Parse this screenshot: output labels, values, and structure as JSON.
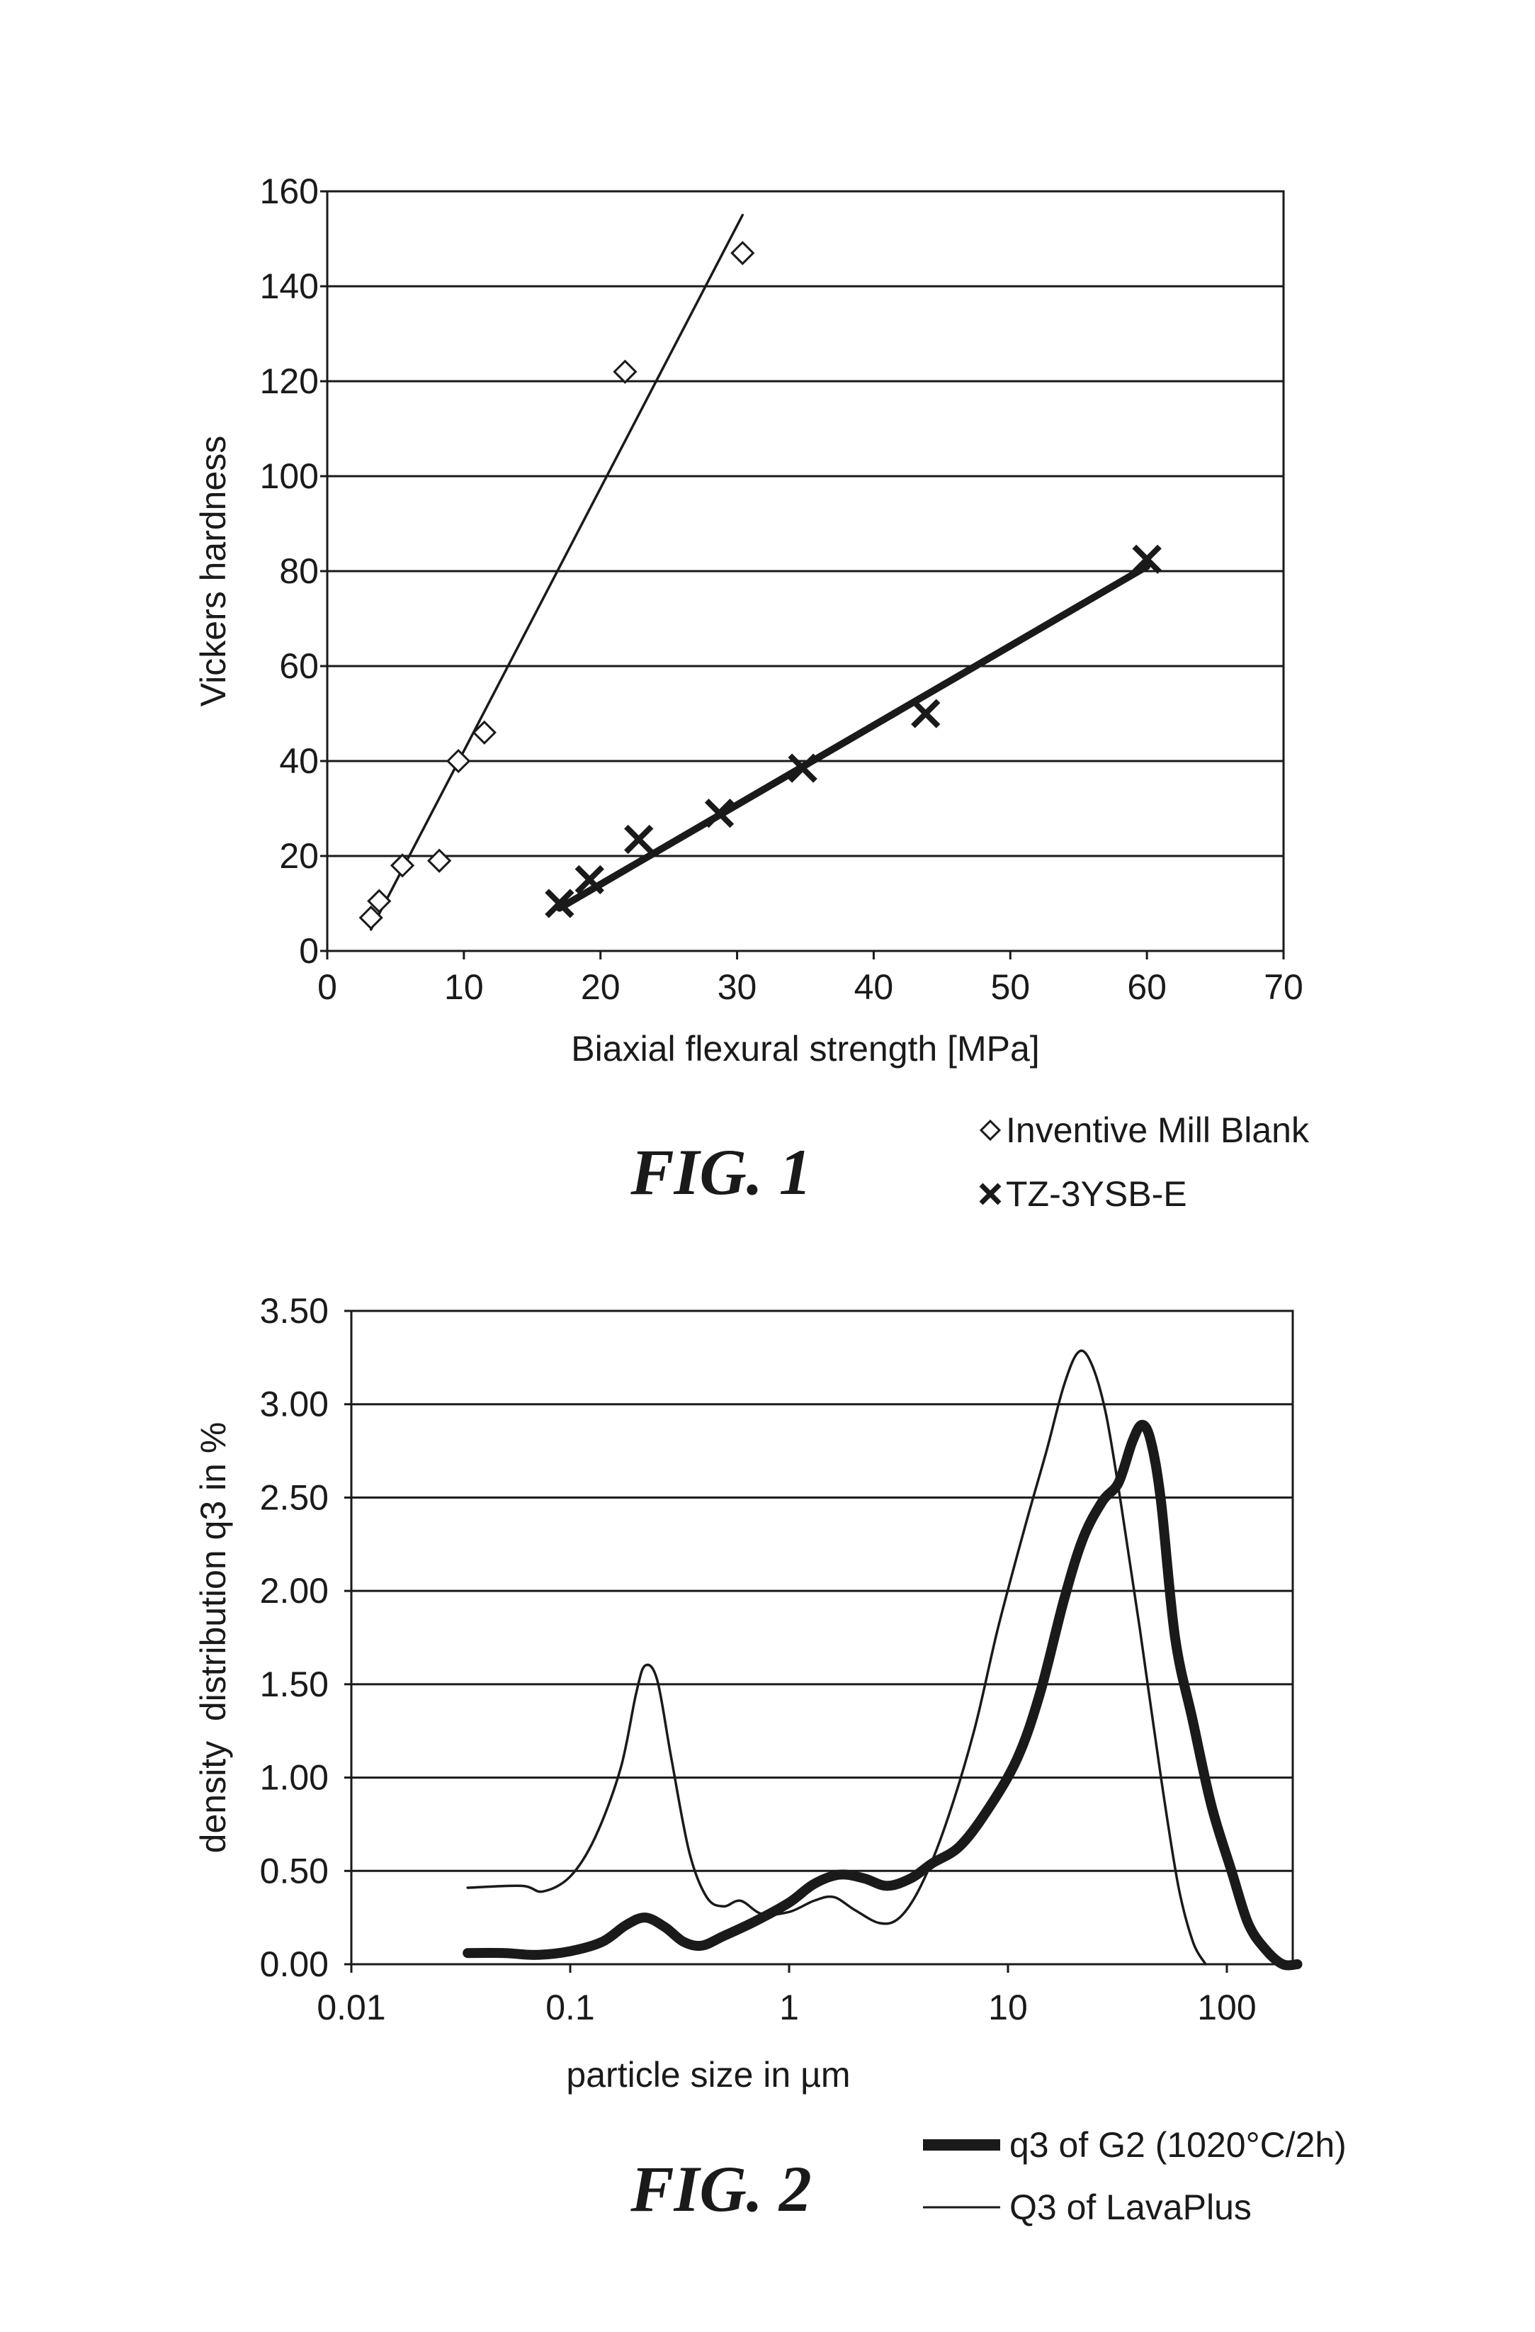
{
  "colors": {
    "ink": "#1a1a1a",
    "background": "#ffffff"
  },
  "chart_data": [
    {
      "type": "scatter",
      "figure_label": "FIG. 1",
      "title": "",
      "xlabel": "Biaxial flexural strength [MPa]",
      "ylabel": "Vickers hardness",
      "xlim": [
        0,
        70
      ],
      "ylim": [
        0,
        160
      ],
      "xticks": [
        "0",
        "10",
        "20",
        "30",
        "40",
        "50",
        "60",
        "70"
      ],
      "yticks": [
        "0",
        "20",
        "40",
        "60",
        "80",
        "100",
        "120",
        "140",
        "160"
      ],
      "grid": "horizontal",
      "legend_position": "bottom-right, outside plot",
      "series": [
        {
          "name": "Inventive Mill Blank",
          "marker": "open-diamond",
          "points": [
            [
              3.2,
              7
            ],
            [
              3.8,
              10.5
            ],
            [
              5.5,
              18
            ],
            [
              8.2,
              19
            ],
            [
              9.6,
              40
            ],
            [
              11.5,
              46
            ],
            [
              21.8,
              122
            ],
            [
              30.4,
              147
            ]
          ],
          "trendline": [
            [
              3.2,
              4.5
            ],
            [
              30.4,
              155
            ]
          ]
        },
        {
          "name": "TZ-3YSB-E",
          "marker": "bold-x",
          "points": [
            [
              17,
              10
            ],
            [
              19.2,
              15
            ],
            [
              22.8,
              23.5
            ],
            [
              28.7,
              29
            ],
            [
              34.8,
              38.5
            ],
            [
              43.8,
              50
            ],
            [
              60,
              82.5
            ]
          ],
          "trendline": [
            [
              17,
              9
            ],
            [
              60,
              81
            ]
          ]
        }
      ]
    },
    {
      "type": "line",
      "figure_label": "FIG. 2",
      "title": "",
      "xlabel": "particle size in µm",
      "ylabel": "density  distribution q3 in %",
      "xscale": "log",
      "xlim": [
        0.01,
        200
      ],
      "ylim": [
        0,
        3.5
      ],
      "xticks": [
        "0.01",
        "0.1",
        "1",
        "10",
        "100"
      ],
      "yticks": [
        "0.00",
        "0.50",
        "1.00",
        "1.50",
        "2.00",
        "2.50",
        "3.00",
        "3.50"
      ],
      "grid": "horizontal",
      "legend_position": "bottom-right, outside plot",
      "series": [
        {
          "name": "q3 of G2 (1020°C/2h)",
          "style": "thick",
          "points": [
            [
              0.034,
              0.06
            ],
            [
              0.05,
              0.06
            ],
            [
              0.07,
              0.05
            ],
            [
              0.1,
              0.07
            ],
            [
              0.14,
              0.12
            ],
            [
              0.18,
              0.21
            ],
            [
              0.22,
              0.25
            ],
            [
              0.27,
              0.2
            ],
            [
              0.33,
              0.12
            ],
            [
              0.4,
              0.1
            ],
            [
              0.5,
              0.15
            ],
            [
              0.7,
              0.23
            ],
            [
              1.0,
              0.33
            ],
            [
              1.3,
              0.43
            ],
            [
              1.7,
              0.48
            ],
            [
              2.2,
              0.46
            ],
            [
              2.8,
              0.42
            ],
            [
              3.6,
              0.46
            ],
            [
              4.5,
              0.54
            ],
            [
              6,
              0.63
            ],
            [
              8,
              0.82
            ],
            [
              11,
              1.1
            ],
            [
              14,
              1.45
            ],
            [
              18,
              1.95
            ],
            [
              22,
              2.28
            ],
            [
              27,
              2.48
            ],
            [
              32,
              2.58
            ],
            [
              37,
              2.8
            ],
            [
              41,
              2.89
            ],
            [
              45,
              2.8
            ],
            [
              50,
              2.48
            ],
            [
              58,
              1.75
            ],
            [
              70,
              1.3
            ],
            [
              85,
              0.85
            ],
            [
              105,
              0.5
            ],
            [
              125,
              0.22
            ],
            [
              150,
              0.08
            ],
            [
              180,
              0.0
            ],
            [
              210,
              0.0
            ]
          ]
        },
        {
          "name": "Q3 of LavaPlus",
          "style": "thin",
          "points": [
            [
              0.034,
              0.41
            ],
            [
              0.06,
              0.42
            ],
            [
              0.075,
              0.39
            ],
            [
              0.1,
              0.47
            ],
            [
              0.13,
              0.68
            ],
            [
              0.17,
              1.05
            ],
            [
              0.2,
              1.45
            ],
            [
              0.22,
              1.6
            ],
            [
              0.25,
              1.52
            ],
            [
              0.29,
              1.1
            ],
            [
              0.35,
              0.6
            ],
            [
              0.42,
              0.36
            ],
            [
              0.5,
              0.31
            ],
            [
              0.6,
              0.34
            ],
            [
              0.75,
              0.27
            ],
            [
              1.0,
              0.28
            ],
            [
              1.3,
              0.34
            ],
            [
              1.6,
              0.36
            ],
            [
              2.0,
              0.29
            ],
            [
              2.6,
              0.22
            ],
            [
              3.2,
              0.25
            ],
            [
              4.0,
              0.42
            ],
            [
              5.2,
              0.75
            ],
            [
              7,
              1.25
            ],
            [
              9,
              1.8
            ],
            [
              12,
              2.35
            ],
            [
              15,
              2.75
            ],
            [
              18,
              3.1
            ],
            [
              21,
              3.28
            ],
            [
              24,
              3.22
            ],
            [
              28,
              2.95
            ],
            [
              33,
              2.45
            ],
            [
              40,
              1.8
            ],
            [
              50,
              1.0
            ],
            [
              60,
              0.42
            ],
            [
              70,
              0.12
            ],
            [
              80,
              0.0
            ]
          ]
        }
      ]
    }
  ]
}
